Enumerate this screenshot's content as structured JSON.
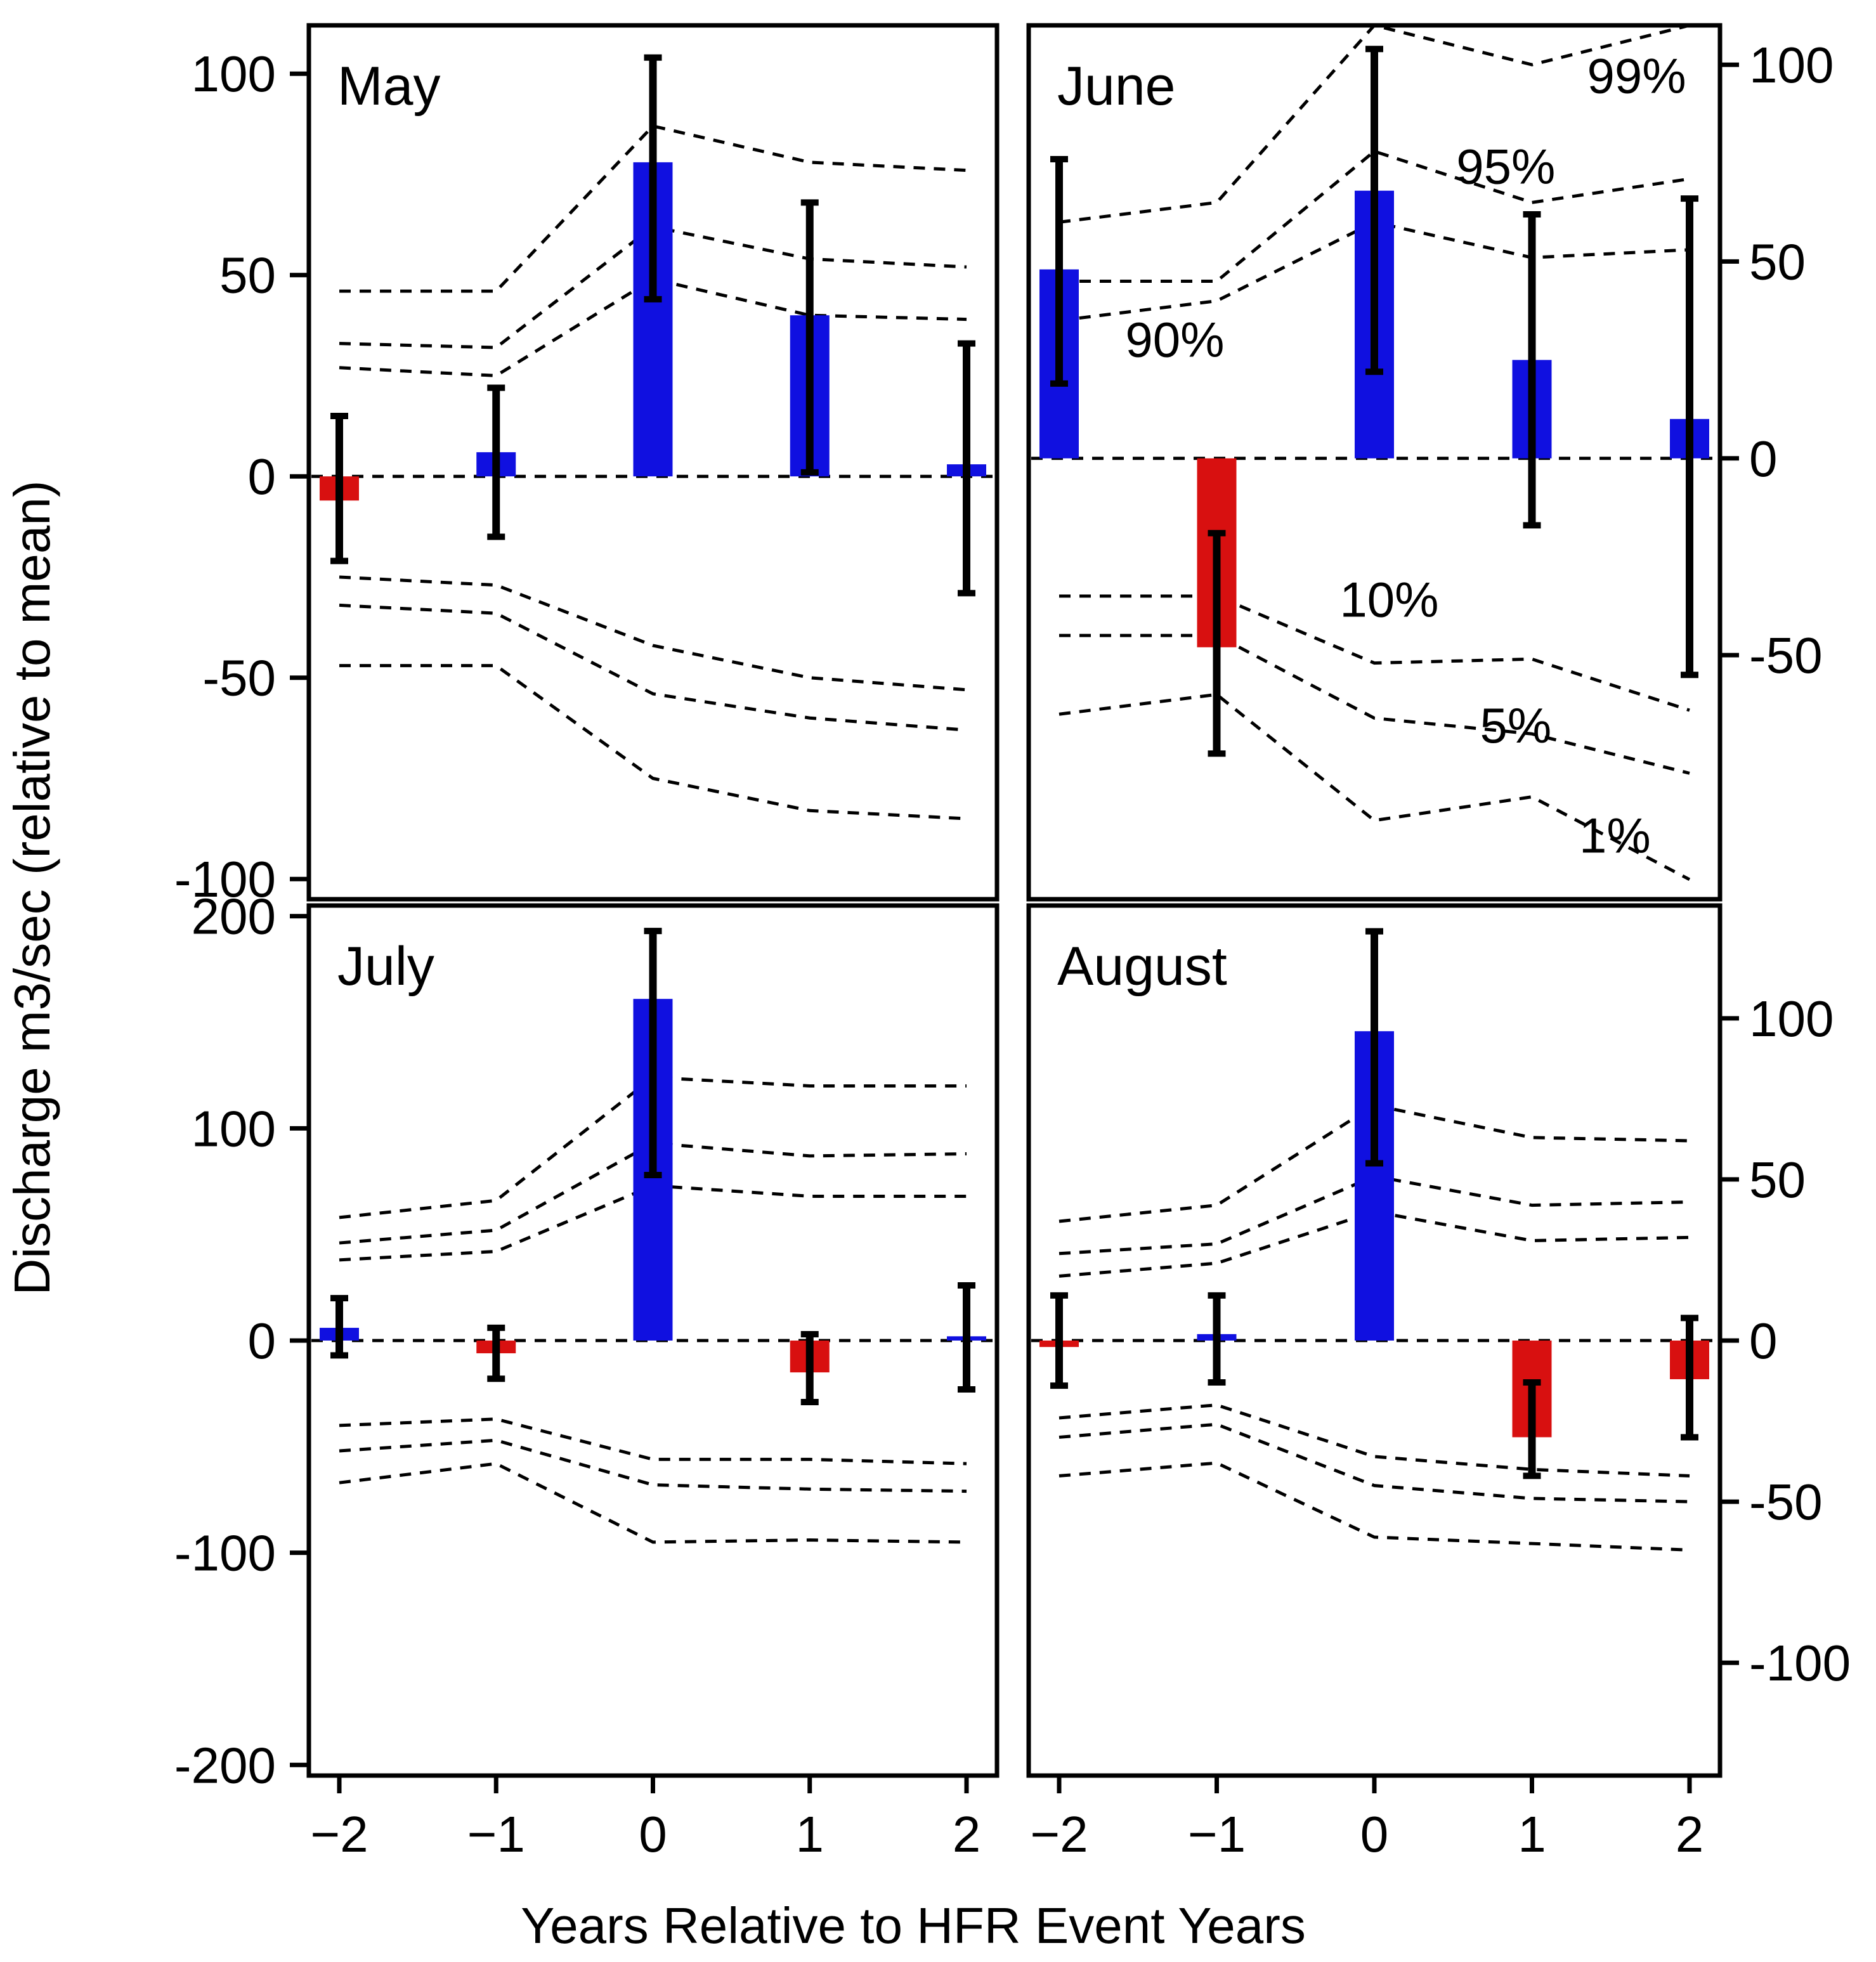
{
  "chart_data": {
    "type": "bar",
    "ylabel": "Discharge m3/sec (relative to mean)",
    "xlabel": "Years Relative to HFR Event Years",
    "x": [
      -2,
      -1,
      0,
      1,
      2
    ],
    "x_tick_labels": [
      "−2",
      "−1",
      "0",
      "1",
      "2"
    ],
    "colors": {
      "positive": "#1010e0",
      "negative": "#d81010"
    },
    "percentile_labels": [
      "99%",
      "95%",
      "90%",
      "10%",
      "5%",
      "1%"
    ],
    "panels": [
      {
        "title": "May",
        "ylim": [
          -105,
          112
        ],
        "y_ticks": [
          100,
          50,
          0,
          -50,
          -100
        ],
        "y_tick_labels": [
          "100",
          "50",
          "0",
          "-50",
          "-100"
        ],
        "y_axis_side": "left",
        "values": [
          -6,
          6,
          78,
          40,
          3
        ],
        "error_low": [
          -21,
          -15,
          44,
          1,
          -29
        ],
        "error_high": [
          15,
          22,
          104,
          68,
          33
        ],
        "percentiles": [
          {
            "name": "99%",
            "values": [
              46,
              46,
              87,
              78,
              76
            ]
          },
          {
            "name": "95%",
            "values": [
              33,
              32,
              62,
              54,
              52
            ]
          },
          {
            "name": "90%",
            "values": [
              27,
              25,
              49,
              40,
              39
            ]
          },
          {
            "name": "10%",
            "values": [
              -25,
              -27,
              -42,
              -50,
              -53
            ]
          },
          {
            "name": "5%",
            "values": [
              -32,
              -34,
              -54,
              -60,
              -63
            ]
          },
          {
            "name": "1%",
            "values": [
              -47,
              -47,
              -75,
              -83,
              -85
            ]
          }
        ],
        "percentile_label_positions": []
      },
      {
        "title": "June",
        "ylim": [
          -112,
          110
        ],
        "y_ticks": [
          100,
          50,
          0,
          -50
        ],
        "y_tick_labels": [
          "100",
          "50",
          "0",
          "-50"
        ],
        "y_axis_side": "right",
        "values": [
          48,
          -48,
          68,
          25,
          10
        ],
        "error_low": [
          19,
          -75,
          22,
          -17,
          -55
        ],
        "error_high": [
          76,
          -19,
          104,
          62,
          66
        ],
        "percentiles": [
          {
            "name": "99%",
            "values": [
              60,
              65,
              110,
              100,
              110
            ]
          },
          {
            "name": "95%",
            "values": [
              45,
              45,
              78,
              65,
              71
            ]
          },
          {
            "name": "90%",
            "values": [
              35,
              40,
              60,
              51,
              53
            ]
          },
          {
            "name": "10%",
            "values": [
              -35,
              -35,
              -52,
              -51,
              -64
            ]
          },
          {
            "name": "5%",
            "values": [
              -45,
              -45,
              -66,
              -70,
              -80
            ]
          },
          {
            "name": "1%",
            "values": [
              -65,
              -60,
              -92,
              -86,
              -107
            ]
          }
        ],
        "percentile_label_positions": [
          {
            "name": "99%",
            "x": 1.35,
            "y": 97
          },
          {
            "name": "95%",
            "x": 0.52,
            "y": 74
          },
          {
            "name": "90%",
            "x": -1.58,
            "y": 30
          },
          {
            "name": "10%",
            "x": -0.22,
            "y": -36
          },
          {
            "name": "5%",
            "x": 0.67,
            "y": -68
          },
          {
            "name": "1%",
            "x": 1.3,
            "y": -96
          }
        ]
      },
      {
        "title": "July",
        "ylim": [
          -205,
          205
        ],
        "y_ticks": [
          200,
          100,
          0,
          -100,
          -200
        ],
        "y_tick_labels": [
          "200",
          "100",
          "0",
          "-100",
          "-200"
        ],
        "y_axis_side": "left",
        "values": [
          6,
          -6,
          161,
          -15,
          2
        ],
        "error_low": [
          -7,
          -18,
          78,
          -29,
          -23
        ],
        "error_high": [
          20,
          6,
          193,
          3,
          26
        ],
        "percentiles": [
          {
            "name": "99%",
            "values": [
              58,
              66,
              124,
              120,
              120
            ]
          },
          {
            "name": "95%",
            "values": [
              46,
              52,
              93,
              87,
              88
            ]
          },
          {
            "name": "90%",
            "values": [
              38,
              42,
              73,
              68,
              68
            ]
          },
          {
            "name": "10%",
            "values": [
              -40,
              -37,
              -56,
              -56,
              -58
            ]
          },
          {
            "name": "5%",
            "values": [
              -52,
              -47,
              -68,
              -70,
              -71
            ]
          },
          {
            "name": "1%",
            "values": [
              -67,
              -58,
              -95,
              -94,
              -95
            ]
          }
        ],
        "percentile_label_positions": []
      },
      {
        "title": "August",
        "ylim": [
          -135,
          135
        ],
        "y_ticks": [
          100,
          50,
          0,
          -50,
          -100
        ],
        "y_tick_labels": [
          "100",
          "50",
          "0",
          "-50",
          "-100"
        ],
        "y_axis_side": "right",
        "values": [
          -2,
          2,
          96,
          -30,
          -12
        ],
        "error_low": [
          -14,
          -13,
          55,
          -42,
          -30
        ],
        "error_high": [
          14,
          14,
          127,
          -13,
          7
        ],
        "percentiles": [
          {
            "name": "99%",
            "values": [
              37,
              42,
              73,
              63,
              62
            ]
          },
          {
            "name": "95%",
            "values": [
              27,
              30,
              51,
              42,
              43
            ]
          },
          {
            "name": "90%",
            "values": [
              20,
              24,
              40,
              31,
              32
            ]
          },
          {
            "name": "10%",
            "values": [
              -24,
              -20,
              -36,
              -40,
              -42
            ]
          },
          {
            "name": "5%",
            "values": [
              -30,
              -26,
              -45,
              -49,
              -50
            ]
          },
          {
            "name": "1%",
            "values": [
              -42,
              -38,
              -61,
              -63,
              -65
            ]
          }
        ],
        "percentile_label_positions": []
      }
    ]
  }
}
